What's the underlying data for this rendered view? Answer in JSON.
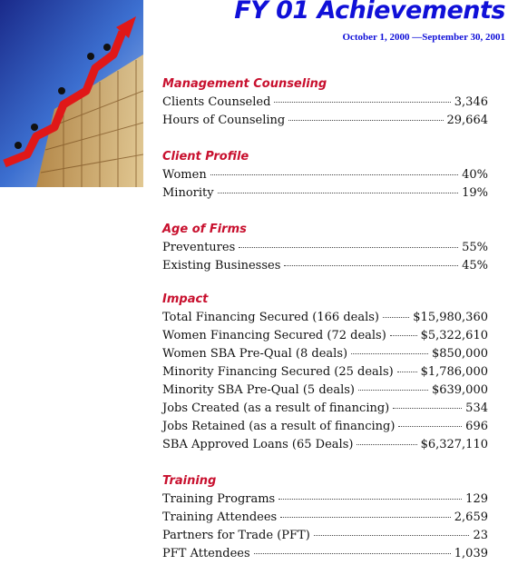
{
  "header": {
    "title": "FY 01 Achievements",
    "subtitle": "October 1, 2000 —September 30, 2001"
  },
  "sections": [
    {
      "heading": "Management Counseling",
      "rows": [
        [
          "Clients Counseled",
          "3,346"
        ],
        [
          "Hours of Counseling",
          "29,664"
        ]
      ]
    },
    {
      "heading": "Client Profile",
      "rows": [
        [
          "Women",
          "40%"
        ],
        [
          "Minority",
          "19%"
        ]
      ]
    },
    {
      "heading": "Age of Firms",
      "rows": [
        [
          "Preventures",
          "55%"
        ],
        [
          "Existing Businesses",
          "45%"
        ]
      ]
    },
    {
      "heading": "Impact",
      "rows": [
        [
          "Total Financing Secured (166 deals)",
          "$15,980,360"
        ],
        [
          "Women Financing Secured (72 deals)",
          "$5,322,610"
        ],
        [
          "Women SBA Pre-Qual (8 deals)",
          "$850,000"
        ],
        [
          "Minority Financing Secured (25 deals)",
          "$1,786,000"
        ],
        [
          "Minority SBA Pre-Qual (5 deals)",
          "$639,000"
        ],
        [
          "Jobs Created (as a result of financing)",
          "534"
        ],
        [
          "Jobs Retained (as a result of financing)",
          "696"
        ],
        [
          "SBA Approved Loans (65 Deals)",
          "$6,327,110"
        ]
      ]
    },
    {
      "heading": "Training",
      "rows": [
        [
          "Training Programs",
          "129"
        ],
        [
          "Training Attendees",
          "2,659"
        ],
        [
          "Partners for Trade (PFT)",
          "23"
        ],
        [
          "PFT Attendees",
          "1,039"
        ]
      ]
    }
  ]
}
